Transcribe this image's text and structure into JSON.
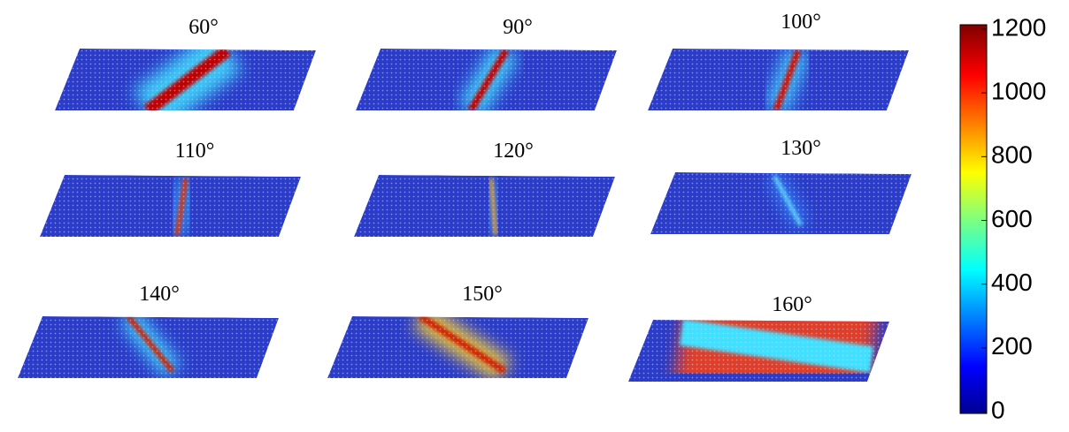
{
  "panels": [
    {
      "label": "60°"
    },
    {
      "label": "90°"
    },
    {
      "label": "100°"
    },
    {
      "label": "110°"
    },
    {
      "label": "120°"
    },
    {
      "label": "130°"
    },
    {
      "label": "140°"
    },
    {
      "label": "150°"
    },
    {
      "label": "160°"
    }
  ],
  "colorbar": {
    "lim": [
      0,
      1200
    ],
    "ticks": [
      0,
      200,
      400,
      600,
      800,
      1000,
      1200
    ]
  }
}
